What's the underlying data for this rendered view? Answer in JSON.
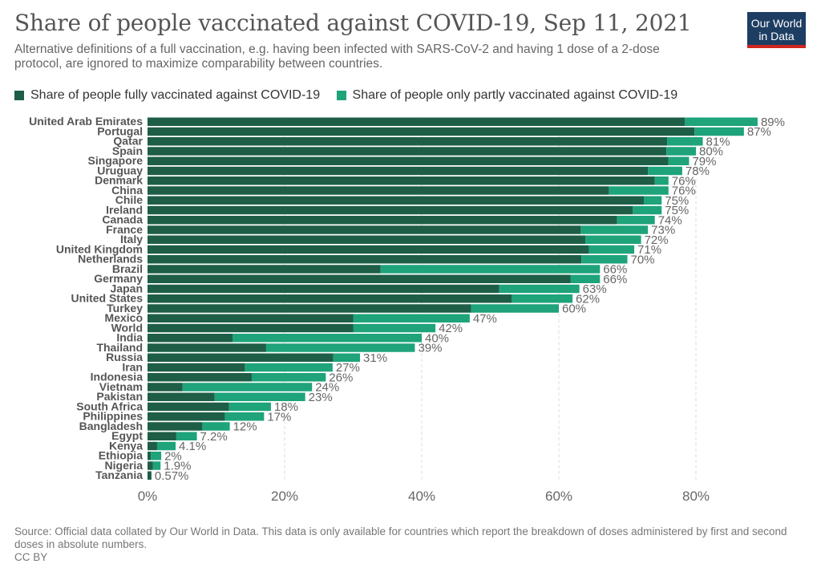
{
  "header": {
    "title": "Share of people vaccinated against COVID-19, Sep 11, 2021",
    "subtitle": "Alternative definitions of a full vaccination, e.g. having been infected with SARS-CoV-2 and having 1 dose of a 2-dose protocol, are ignored to maximize comparability between countries.",
    "logo_line1": "Our World",
    "logo_line2": "in Data"
  },
  "colors": {
    "full": "#1e5e47",
    "partial": "#1ea37a",
    "logo_bg": "#1d3d63",
    "logo_accent": "#ce261e"
  },
  "footer": {
    "source": "Source: Official data collated by Our World in Data. This data is only available for countries which report the breakdown of doses administered by first and second doses in absolute numbers.",
    "license": "CC BY"
  },
  "chart_data": {
    "type": "bar",
    "orientation": "horizontal",
    "stacked": true,
    "xlim": [
      0,
      100
    ],
    "x_ticks": [
      0,
      20,
      40,
      60,
      80
    ],
    "x_tick_labels": [
      "0%",
      "20%",
      "40%",
      "60%",
      "80%"
    ],
    "grid": "vertical dashed",
    "legend_position": "top",
    "categories": [
      "United Arab Emirates",
      "Portugal",
      "Qatar",
      "Spain",
      "Singapore",
      "Uruguay",
      "Denmark",
      "China",
      "Chile",
      "Ireland",
      "Canada",
      "France",
      "Italy",
      "United Kingdom",
      "Netherlands",
      "Brazil",
      "Germany",
      "Japan",
      "United States",
      "Turkey",
      "Mexico",
      "World",
      "India",
      "Thailand",
      "Russia",
      "Iran",
      "Indonesia",
      "Vietnam",
      "Pakistan",
      "South Africa",
      "Philippines",
      "Bangladesh",
      "Egypt",
      "Kenya",
      "Ethiopia",
      "Nigeria",
      "Tanzania"
    ],
    "series": [
      {
        "name": "Share of people fully vaccinated against COVID-19",
        "values": [
          78.4,
          79.8,
          75.8,
          75.7,
          76.0,
          73.0,
          74.0,
          67.3,
          72.4,
          70.8,
          68.5,
          63.2,
          63.9,
          64.4,
          63.3,
          34.0,
          61.7,
          51.3,
          53.1,
          47.2,
          30.0,
          30.0,
          12.4,
          17.3,
          27.1,
          14.2,
          15.2,
          5.1,
          9.8,
          11.9,
          11.3,
          8.0,
          4.2,
          1.4,
          0.5,
          0.8,
          0.57
        ]
      },
      {
        "name": "Share of people only partly vaccinated against COVID-19",
        "values": [
          10.6,
          7.2,
          5.2,
          4.3,
          3.0,
          5.0,
          2.0,
          8.7,
          2.6,
          4.2,
          5.5,
          9.8,
          8.1,
          6.6,
          6.7,
          32.0,
          4.3,
          11.7,
          8.9,
          12.8,
          17.0,
          12.0,
          27.6,
          21.7,
          3.9,
          12.8,
          10.8,
          18.9,
          13.2,
          6.1,
          5.7,
          4.0,
          3.0,
          2.7,
          1.5,
          1.1,
          0
        ]
      }
    ],
    "total_labels": [
      "89%",
      "87%",
      "81%",
      "80%",
      "79%",
      "78%",
      "76%",
      "76%",
      "75%",
      "75%",
      "74%",
      "73%",
      "72%",
      "71%",
      "70%",
      "66%",
      "66%",
      "63%",
      "62%",
      "60%",
      "47%",
      "42%",
      "40%",
      "39%",
      "31%",
      "27%",
      "26%",
      "24%",
      "23%",
      "18%",
      "17%",
      "12%",
      "7.2%",
      "4.1%",
      "2%",
      "1.9%",
      "0.57%"
    ]
  }
}
